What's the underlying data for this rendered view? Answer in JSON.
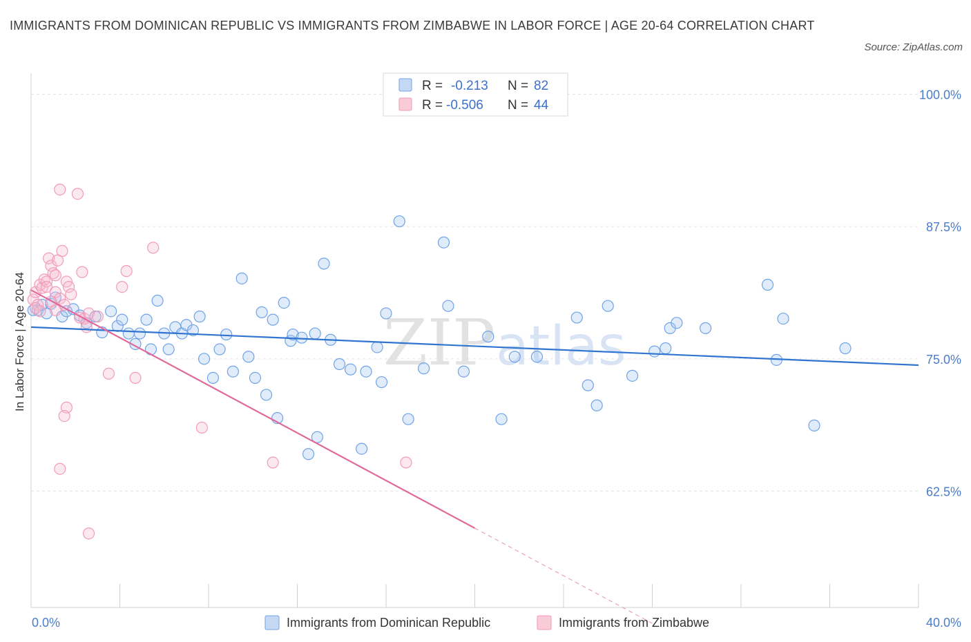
{
  "title": "IMMIGRANTS FROM DOMINICAN REPUBLIC VS IMMIGRANTS FROM ZIMBABWE IN LABOR FORCE | AGE 20-64 CORRELATION CHART",
  "source": "Source: ZipAtlas.com",
  "watermark": {
    "zip": "ZIP",
    "atlas": "atlas"
  },
  "colors": {
    "blue": "#6fa3e8",
    "blue_line": "#2f74d0",
    "pink": "#f29bb8",
    "pink_line": "#e0699a",
    "axis_text": "#4a7cc9"
  },
  "chart_data": {
    "type": "scatter",
    "title": "IMMIGRANTS FROM DOMINICAN REPUBLIC VS IMMIGRANTS FROM ZIMBABWE IN LABOR FORCE | AGE 20-64 CORRELATION CHART",
    "ylabel": "In Labor Force | Age 20-64",
    "xlabel": "",
    "xlim": [
      0,
      40
    ],
    "ylim": [
      51.5,
      102
    ],
    "x_tick_labels": [
      "0.0%",
      "40.0%"
    ],
    "y_ticks": [
      62.5,
      75.0,
      87.5,
      100.0
    ],
    "y_tick_labels": [
      "62.5%",
      "75.0%",
      "87.5%",
      "100.0%"
    ],
    "grid": true,
    "legend": {
      "position": "top-center",
      "rows": [
        {
          "r_label": "R =",
          "r_value": "-0.213",
          "n_label": "N =",
          "n_value": "82"
        },
        {
          "r_label": "R =",
          "r_value": "-0.506",
          "n_label": "N =",
          "n_value": "44"
        }
      ]
    },
    "series": [
      {
        "name": "Immigrants from Dominican Republic",
        "color": "#6fa3e8",
        "trend": {
          "x": [
            0,
            40
          ],
          "y": [
            78.0,
            74.4
          ]
        },
        "points": [
          [
            0.3,
            79.6
          ],
          [
            0.5,
            80.1
          ],
          [
            0.7,
            79.3
          ],
          [
            0.9,
            80.2
          ],
          [
            1.1,
            80.8
          ],
          [
            1.4,
            79.0
          ],
          [
            1.6,
            79.5
          ],
          [
            1.9,
            79.7
          ],
          [
            2.2,
            79.1
          ],
          [
            2.5,
            78.4
          ],
          [
            2.9,
            79.0
          ],
          [
            3.2,
            77.5
          ],
          [
            3.6,
            79.5
          ],
          [
            3.9,
            78.1
          ],
          [
            4.1,
            78.7
          ],
          [
            4.4,
            77.4
          ],
          [
            4.7,
            76.4
          ],
          [
            4.9,
            77.4
          ],
          [
            5.2,
            78.7
          ],
          [
            5.4,
            75.9
          ],
          [
            5.7,
            80.5
          ],
          [
            6.0,
            77.4
          ],
          [
            6.2,
            75.9
          ],
          [
            6.5,
            78.0
          ],
          [
            6.8,
            77.4
          ],
          [
            7.0,
            78.2
          ],
          [
            7.3,
            77.7
          ],
          [
            7.6,
            79.0
          ],
          [
            7.8,
            75.0
          ],
          [
            8.2,
            73.2
          ],
          [
            8.5,
            75.9
          ],
          [
            8.8,
            77.3
          ],
          [
            9.1,
            73.8
          ],
          [
            9.5,
            82.6
          ],
          [
            9.8,
            75.2
          ],
          [
            10.1,
            73.2
          ],
          [
            10.4,
            79.4
          ],
          [
            10.6,
            71.6
          ],
          [
            10.9,
            78.7
          ],
          [
            11.1,
            69.4
          ],
          [
            11.4,
            80.3
          ],
          [
            11.7,
            76.7
          ],
          [
            11.8,
            77.3
          ],
          [
            12.2,
            77.0
          ],
          [
            12.5,
            66.0
          ],
          [
            12.8,
            77.4
          ],
          [
            12.9,
            67.6
          ],
          [
            13.2,
            84.0
          ],
          [
            13.5,
            76.8
          ],
          [
            13.9,
            74.5
          ],
          [
            14.4,
            74.0
          ],
          [
            14.9,
            66.5
          ],
          [
            15.1,
            73.8
          ],
          [
            15.6,
            76.1
          ],
          [
            15.8,
            72.8
          ],
          [
            16.0,
            79.3
          ],
          [
            16.6,
            88.0
          ],
          [
            17.0,
            69.3
          ],
          [
            17.7,
            74.1
          ],
          [
            18.6,
            86.0
          ],
          [
            18.8,
            80.0
          ],
          [
            19.5,
            73.8
          ],
          [
            20.6,
            77.1
          ],
          [
            21.2,
            69.3
          ],
          [
            21.8,
            75.2
          ],
          [
            22.8,
            75.2
          ],
          [
            24.6,
            78.9
          ],
          [
            25.1,
            72.5
          ],
          [
            25.5,
            70.6
          ],
          [
            26.0,
            80.0
          ],
          [
            27.1,
            73.4
          ],
          [
            28.1,
            75.7
          ],
          [
            28.6,
            76.0
          ],
          [
            28.8,
            77.9
          ],
          [
            29.1,
            78.4
          ],
          [
            30.4,
            77.9
          ],
          [
            33.2,
            82.0
          ],
          [
            33.6,
            74.9
          ],
          [
            33.9,
            78.8
          ],
          [
            35.3,
            68.7
          ],
          [
            36.7,
            76.0
          ],
          [
            0.1,
            79.6
          ]
        ]
      },
      {
        "name": "Immigrants from Zimbabwe",
        "color": "#f29bb8",
        "trend": {
          "x": [
            0,
            20
          ],
          "y": [
            81.5,
            59.0
          ]
        },
        "trend_dashed": {
          "x": [
            20,
            28
          ],
          "y": [
            59.0,
            50.0
          ]
        },
        "points": [
          [
            0.1,
            80.6
          ],
          [
            0.2,
            81.3
          ],
          [
            0.3,
            80.1
          ],
          [
            0.4,
            82.0
          ],
          [
            0.5,
            81.7
          ],
          [
            0.6,
            82.5
          ],
          [
            0.7,
            82.3
          ],
          [
            0.7,
            81.8
          ],
          [
            0.8,
            84.5
          ],
          [
            0.9,
            83.8
          ],
          [
            1.0,
            83.1
          ],
          [
            1.1,
            81.3
          ],
          [
            1.1,
            82.9
          ],
          [
            1.2,
            84.3
          ],
          [
            1.3,
            80.7
          ],
          [
            1.4,
            85.2
          ],
          [
            1.5,
            80.1
          ],
          [
            1.6,
            82.3
          ],
          [
            1.7,
            81.8
          ],
          [
            1.8,
            81.1
          ],
          [
            1.3,
            91.0
          ],
          [
            2.1,
            90.6
          ],
          [
            2.3,
            83.2
          ],
          [
            2.5,
            78.0
          ],
          [
            2.4,
            78.8
          ],
          [
            2.2,
            78.9
          ],
          [
            2.6,
            79.3
          ],
          [
            3.0,
            79.0
          ],
          [
            1.6,
            70.4
          ],
          [
            1.5,
            69.6
          ],
          [
            1.3,
            64.6
          ],
          [
            2.6,
            58.5
          ],
          [
            3.5,
            73.6
          ],
          [
            4.1,
            81.8
          ],
          [
            4.3,
            83.3
          ],
          [
            4.7,
            73.2
          ],
          [
            5.5,
            85.5
          ],
          [
            7.7,
            68.5
          ],
          [
            10.9,
            65.2
          ],
          [
            16.9,
            65.2
          ],
          [
            0.2,
            79.8
          ],
          [
            0.4,
            79.5
          ],
          [
            0.9,
            80.4
          ],
          [
            1.1,
            79.6
          ]
        ]
      }
    ]
  },
  "bottom_legend": [
    {
      "label": "Immigrants from Dominican Republic"
    },
    {
      "label": "Immigrants from Zimbabwe"
    }
  ]
}
